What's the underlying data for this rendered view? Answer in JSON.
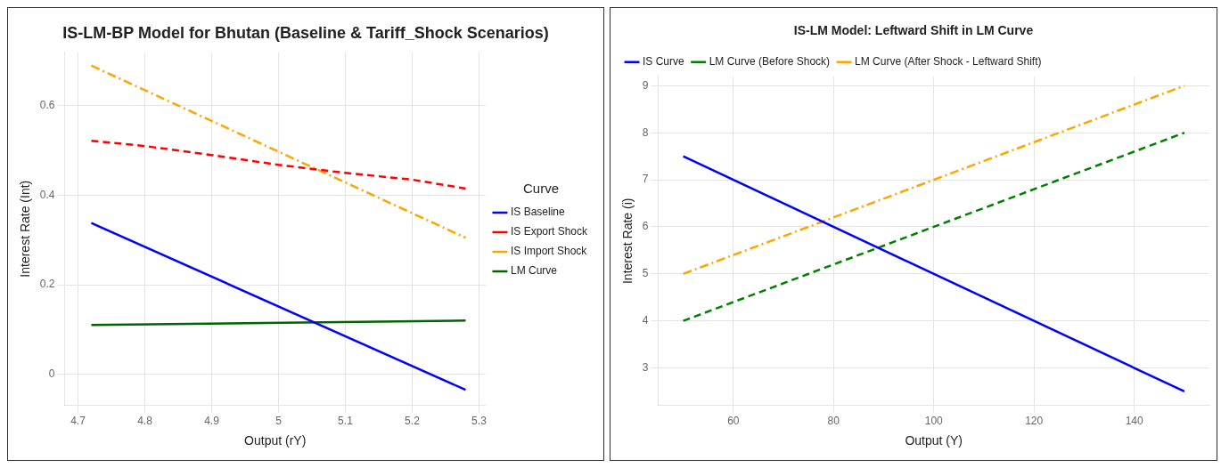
{
  "chart_data": [
    {
      "type": "line",
      "title": "IS-LM-BP Model for Bhutan (Baseline & Tariff_Shock Scenarios)",
      "xlabel": "Output (rY)",
      "ylabel": "Interest Rate (Int)",
      "legend_title": "Curve",
      "legend": "right",
      "grid": true,
      "xlim": [
        4.68,
        5.31
      ],
      "xticks": [
        4.7,
        4.8,
        4.9,
        5.0,
        5.1,
        5.2,
        5.3
      ],
      "ylim": [
        -0.07,
        0.72
      ],
      "yticks": [
        0.0,
        0.2,
        0.4,
        0.6
      ],
      "series": [
        {
          "name": "IS Baseline",
          "color": "#0000ff",
          "line_style": "solid",
          "x": [
            4.72,
            5.28
          ],
          "values": [
            0.338,
            -0.035
          ]
        },
        {
          "name": "IS Export Shock",
          "color": "#ff0000",
          "line_style": "dashed",
          "x": [
            4.72,
            4.8,
            4.9,
            5.0,
            5.1,
            5.2,
            5.28
          ],
          "values": [
            0.522,
            0.51,
            0.49,
            0.468,
            0.45,
            0.435,
            0.415
          ]
        },
        {
          "name": "IS Import Shock",
          "color": "#ffa500",
          "line_style": "dotted",
          "x": [
            4.72,
            5.28
          ],
          "values": [
            0.69,
            0.305
          ]
        },
        {
          "name": "LM Curve",
          "color": "#006400",
          "line_style": "solid",
          "x": [
            4.72,
            5.28
          ],
          "values": [
            0.11,
            0.12
          ]
        }
      ]
    },
    {
      "type": "line",
      "title": "IS-LM Model: Leftward Shift in LM Curve",
      "xlabel": "Output (Y)",
      "ylabel": "Interest Rate (i)",
      "legend": "top left",
      "grid": true,
      "xlim": [
        45,
        155
      ],
      "xticks": [
        60,
        80,
        100,
        120,
        140
      ],
      "ylim": [
        2.2,
        9.2
      ],
      "yticks": [
        3,
        4,
        5,
        6,
        7,
        8,
        9
      ],
      "series": [
        {
          "name": "IS Curve",
          "color": "#0000ff",
          "line_style": "solid",
          "x": [
            50,
            150
          ],
          "values": [
            7.5,
            2.5
          ]
        },
        {
          "name": "LM Curve (Before Shock)",
          "color": "#008000",
          "line_style": "dashed",
          "x": [
            50,
            150
          ],
          "values": [
            4,
            8
          ]
        },
        {
          "name": "LM Curve (After Shock - Leftward Shift)",
          "color": "#ffa500",
          "line_style": "dotted",
          "x": [
            50,
            150
          ],
          "values": [
            5,
            9
          ]
        }
      ]
    }
  ]
}
